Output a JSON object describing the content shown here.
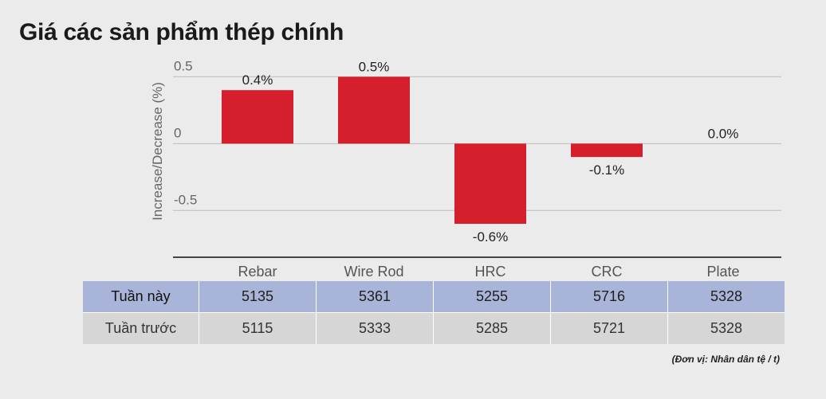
{
  "title": "Giá các sản phẩm thép chính",
  "chart_data": {
    "type": "bar",
    "categories": [
      "Rebar",
      "Wire Rod",
      "HRC",
      "CRC",
      "Plate"
    ],
    "values": [
      0.4,
      0.5,
      -0.6,
      -0.1,
      0.0
    ],
    "data_labels": [
      "0.4%",
      "0.5%",
      "-0.6%",
      "-0.1%",
      "0.0%"
    ],
    "ylabel": "Increase/Decrease (%)",
    "xlabel": "",
    "yticks": [
      {
        "value": 0.5,
        "label": "0.5"
      },
      {
        "value": 0,
        "label": "0"
      },
      {
        "value": -0.5,
        "label": "-0.5"
      }
    ],
    "ylim": [
      -0.85,
      0.55
    ],
    "grid": true,
    "bar_color": "#d61f2c"
  },
  "table": {
    "rows": [
      {
        "label": "Tuần này",
        "values": [
          "5135",
          "5361",
          "5255",
          "5716",
          "5328"
        ]
      },
      {
        "label": "Tuần trước",
        "values": [
          "5115",
          "5333",
          "5285",
          "5721",
          "5328"
        ]
      }
    ]
  },
  "unit_note": "(Đơn vị: Nhân dân tệ / t)"
}
